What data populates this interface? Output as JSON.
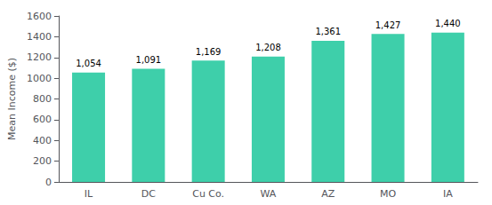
{
  "chart_data": {
    "type": "bar",
    "categories": [
      "IL",
      "DC",
      "Cu Co.",
      "WA",
      "AZ",
      "MO",
      "IA"
    ],
    "values": [
      1054,
      1091,
      1169,
      1208,
      1361,
      1427,
      1440
    ],
    "value_labels": [
      "1,054",
      "1,091",
      "1,169",
      "1,208",
      "1,361",
      "1,427",
      "1,440"
    ],
    "data_labels": true,
    "color": "#3ecfaa",
    "ylabel": "Mean Income ($)",
    "ylim": [
      0,
      1600
    ],
    "yticks": [
      0,
      200,
      400,
      600,
      800,
      1000,
      1200,
      1400,
      1600
    ],
    "grid": false
  }
}
